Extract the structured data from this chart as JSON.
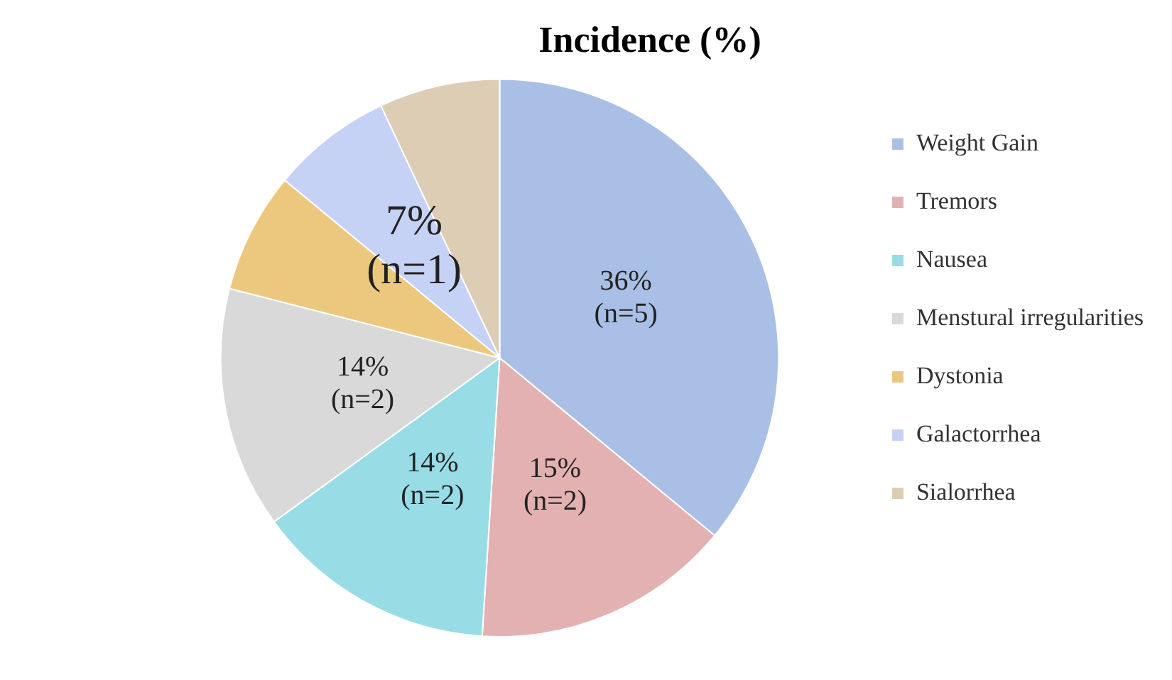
{
  "chart_data": {
    "type": "pie",
    "title": "Incidence (%)",
    "categories": [
      "Weight Gain",
      "Tremors",
      "Nausea",
      "Menstural irregularities",
      "Dystonia",
      "Galactorrhea",
      "Sialorrhea"
    ],
    "values": [
      36,
      15,
      14,
      14,
      7,
      7,
      7
    ],
    "colors": [
      "#a9bfe6",
      "#e3b1b1",
      "#98dce6",
      "#d9d9d9",
      "#ecc87e",
      "#c6d2f5",
      "#dccdb4"
    ],
    "value_labels": [
      "36%\n(n=5)",
      "15%\n(n=2)",
      "14%\n(n=2)",
      "14%\n(n=2)",
      null,
      "7%\n(n=1)",
      null
    ],
    "legend": "right"
  }
}
